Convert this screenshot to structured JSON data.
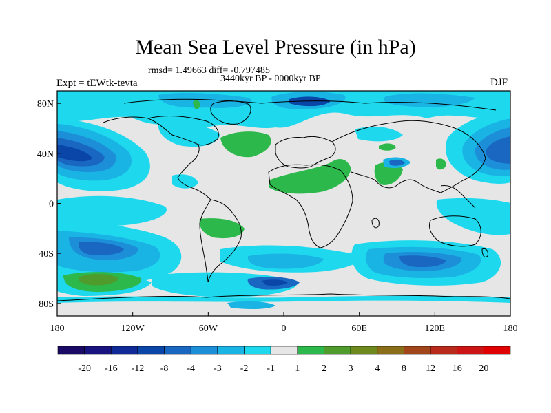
{
  "title": "Mean Sea Level Pressure (in hPa)",
  "stats": "rmsd= 1.49663 diff= -0.797485",
  "period": "3440kyr BP - 0000kyr BP",
  "experiment": "Expt = tEWtk-tevta",
  "season": "DJF",
  "lon_ticks": [
    "180",
    "120W",
    "60W",
    "0",
    "60E",
    "120E",
    "180"
  ],
  "lat_ticks": [
    "80N",
    "40N",
    "0",
    "40S",
    "80S"
  ],
  "colorbar": {
    "labels": [
      "-20",
      "-16",
      "-12",
      "-8",
      "-4",
      "-3",
      "-2",
      "-1",
      "1",
      "2",
      "3",
      "4",
      "8",
      "12",
      "16",
      "20"
    ],
    "colors": [
      "#1a0a66",
      "#18137f",
      "#0f2a96",
      "#0a45a8",
      "#1a67c2",
      "#1c8fd8",
      "#19b4e4",
      "#1ed9ee",
      "#e6e6e6",
      "#2db84b",
      "#4f9c2c",
      "#6e8a1e",
      "#8a6e1a",
      "#a0461a",
      "#b82a1a",
      "#cc1414",
      "#e00000"
    ]
  },
  "palette": {
    "land_background": "#e6e6e6",
    "cyan": "#1ed9ee",
    "light_blue": "#19b4e4",
    "mid_blue": "#1c8fd8",
    "blue": "#1a67c2",
    "dark_blue": "#0a45a8",
    "green": "#2db84b",
    "olive": "#4f9c2c"
  }
}
